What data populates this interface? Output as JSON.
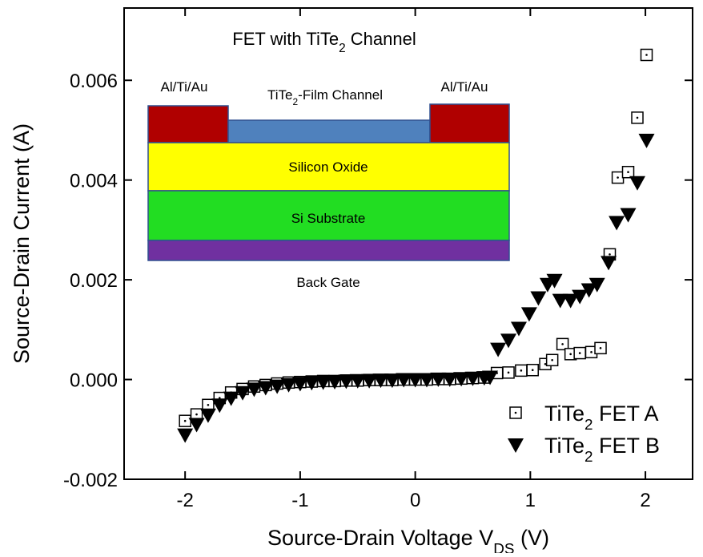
{
  "chart_data": {
    "type": "scatter",
    "xlabel": [
      "Source-Drain Voltage V",
      "DS",
      " (V)"
    ],
    "ylabel": "Source-Drain Current (A)",
    "xlim": [
      -2.53,
      2.41
    ],
    "ylim": [
      -0.002,
      0.00745
    ],
    "xticks": [
      -2,
      -1,
      0,
      1,
      2
    ],
    "yticks": [
      -0.002,
      {
        "value": 0,
        "label": "0.000"
      },
      0.002,
      0.004,
      0.006
    ],
    "legend": "lower right",
    "series": [
      {
        "name": [
          "TiTe",
          "2",
          " FET A"
        ],
        "color": "#000000",
        "marker": "square-open",
        "x": [
          -2,
          -1.9,
          -1.8,
          -1.7,
          -1.6,
          -1.5,
          -1.4,
          -1.3,
          -1.2,
          -1.1,
          -1.0,
          -0.9,
          -0.8,
          -0.7,
          -0.6,
          -0.5,
          -0.4,
          -0.3,
          -0.2,
          -0.1,
          0,
          0.1,
          0.2,
          0.3,
          0.4,
          0.5,
          0.6,
          0.71,
          0.81,
          0.92,
          1.02,
          1.13,
          1.19,
          1.28,
          1.35,
          1.43,
          1.53,
          1.61,
          1.69,
          1.76,
          1.85,
          1.93,
          2.01
        ],
        "values": [
          -0.00083,
          -0.0007,
          -0.00051,
          -0.00037,
          -0.00026,
          -0.00019,
          -0.00014,
          -0.00011,
          -8e-05,
          -6e-05,
          -5e-05,
          -4e-05,
          -3e-05,
          -3e-05,
          -2e-05,
          -2e-05,
          -1e-05,
          -1e-05,
          -1e-05,
          0,
          0,
          0,
          1e-05,
          1e-05,
          2e-05,
          3e-05,
          4e-05,
          0.00013,
          0.00014,
          0.00018,
          0.00019,
          0.00031,
          0.00039,
          0.00071,
          0.00051,
          0.00053,
          0.00055,
          0.00063,
          0.00251,
          0.00405,
          0.00416,
          0.00525,
          0.00651
        ]
      },
      {
        "name": [
          "TiTe",
          "2",
          " FET B"
        ],
        "color": "#000000",
        "marker": "triangle-down",
        "x": [
          -2,
          -1.9,
          -1.8,
          -1.7,
          -1.6,
          -1.5,
          -1.4,
          -1.3,
          -1.2,
          -1.1,
          -1.0,
          -0.9,
          -0.8,
          -0.7,
          -0.6,
          -0.5,
          -0.4,
          -0.3,
          -0.2,
          -0.1,
          0,
          0.1,
          0.2,
          0.3,
          0.4,
          0.5,
          0.6,
          0.65,
          0.72,
          0.81,
          0.9,
          0.99,
          1.07,
          1.15,
          1.21,
          1.26,
          1.35,
          1.43,
          1.51,
          1.58,
          1.68,
          1.75,
          1.85,
          1.93,
          2.01
        ],
        "values": [
          -0.00111,
          -0.0009,
          -0.00071,
          -0.00051,
          -0.00037,
          -0.00026,
          -0.00019,
          -0.00016,
          -0.00013,
          -0.0001,
          -8e-05,
          -6e-05,
          -5e-05,
          -4e-05,
          -3e-05,
          -2e-05,
          -2e-05,
          -1e-05,
          -1e-05,
          0,
          0,
          0,
          1e-05,
          1e-05,
          2e-05,
          3e-05,
          4e-05,
          5e-05,
          0.00061,
          0.00079,
          0.00103,
          0.00132,
          0.00164,
          0.00191,
          0.00199,
          0.00159,
          0.00159,
          0.00167,
          0.0018,
          0.00191,
          0.00235,
          0.00315,
          0.00331,
          0.00395,
          0.0048
        ]
      }
    ]
  },
  "inset": {
    "title": [
      "FET with TiTe",
      "2",
      " Channel"
    ],
    "contact_left": "Al/Ti/Au",
    "contact_right": "Al/Ti/Au",
    "channel": [
      "TiTe",
      "2",
      "-Film Channel"
    ],
    "oxide": "Silicon Oxide",
    "substrate": "Si Substrate",
    "gate": "Back Gate"
  }
}
